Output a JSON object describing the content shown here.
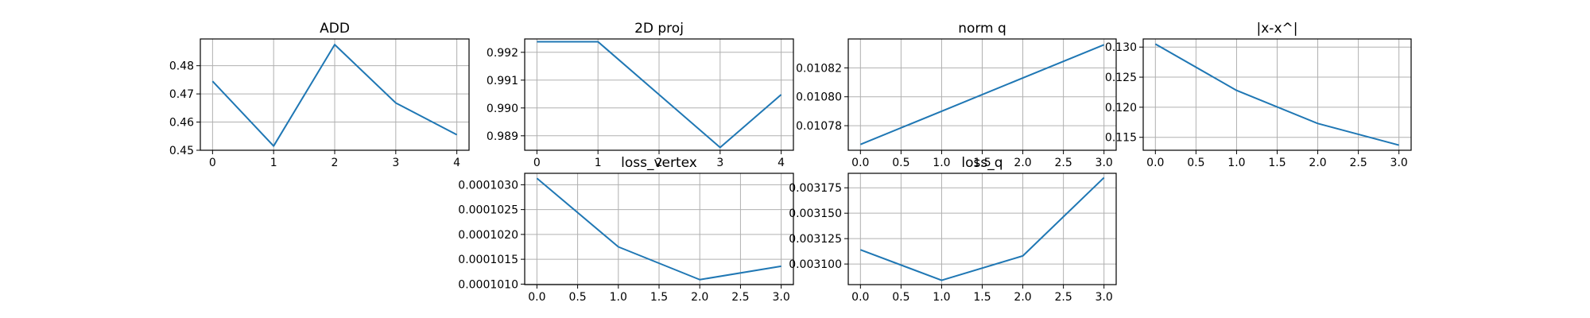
{
  "colors": {
    "series": "#1f77b4",
    "grid": "#b0b0b0",
    "axes": "#000000"
  },
  "chart_data": [
    {
      "type": "line",
      "title": "ADD",
      "xlabel": "",
      "ylabel": "",
      "x": [
        0,
        1,
        2,
        3,
        4
      ],
      "series": [
        {
          "values": [
            0.4745,
            0.4515,
            0.4875,
            0.4668,
            0.4555
          ]
        }
      ],
      "xticks": [
        0,
        1,
        2,
        3,
        4
      ],
      "xtick_labels": [
        "0",
        "1",
        "2",
        "3",
        "4"
      ],
      "xlim": [
        -0.2,
        4.2
      ],
      "yticks": [
        0.45,
        0.46,
        0.47,
        0.48
      ],
      "ytick_labels": [
        "0.45",
        "0.46",
        "0.47",
        "0.48"
      ],
      "ylim": [
        0.45,
        0.4895
      ],
      "grid": true
    },
    {
      "type": "line",
      "title": "2D proj",
      "xlabel": "",
      "ylabel": "",
      "x": [
        0,
        1,
        2,
        3,
        4
      ],
      "series": [
        {
          "values": [
            0.99238,
            0.99238,
            0.99048,
            0.98858,
            0.99048
          ]
        }
      ],
      "xticks": [
        0,
        1,
        2,
        3,
        4
      ],
      "xtick_labels": [
        "0",
        "1",
        "2",
        "3",
        "4"
      ],
      "xlim": [
        -0.2,
        4.2
      ],
      "yticks": [
        0.989,
        0.99,
        0.991,
        0.992
      ],
      "ytick_labels": [
        "0.989",
        "0.990",
        "0.991",
        "0.992"
      ],
      "ylim": [
        0.98848,
        0.99248
      ],
      "grid": true
    },
    {
      "type": "line",
      "title": "norm q",
      "xlabel": "",
      "ylabel": "",
      "x": [
        0,
        1,
        2,
        3
      ],
      "series": [
        {
          "values": [
            0.010767,
            0.01079,
            0.010813,
            0.010836
          ]
        }
      ],
      "xticks": [
        0,
        0.5,
        1,
        1.5,
        2,
        2.5,
        3
      ],
      "xtick_labels": [
        "0.0",
        "0.5",
        "1.0",
        "1.5",
        "2.0",
        "2.5",
        "3.0"
      ],
      "xlim": [
        -0.15,
        3.15
      ],
      "yticks": [
        0.01078,
        0.0108,
        0.01082
      ],
      "ytick_labels": [
        "0.01078",
        "0.01080",
        "0.01082"
      ],
      "ylim": [
        0.010763,
        0.01084
      ],
      "grid": true
    },
    {
      "type": "line",
      "title": "|x-x^|",
      "xlabel": "",
      "ylabel": "",
      "x": [
        0,
        1,
        2,
        3
      ],
      "series": [
        {
          "values": [
            0.1305,
            0.1228,
            0.1173,
            0.1137
          ]
        }
      ],
      "xticks": [
        0,
        0.5,
        1,
        1.5,
        2,
        2.5,
        3
      ],
      "xtick_labels": [
        "0.0",
        "0.5",
        "1.0",
        "1.5",
        "2.0",
        "2.5",
        "3.0"
      ],
      "xlim": [
        -0.15,
        3.15
      ],
      "yticks": [
        0.115,
        0.12,
        0.125,
        0.13
      ],
      "ytick_labels": [
        "0.115",
        "0.120",
        "0.125",
        "0.130"
      ],
      "ylim": [
        0.11285,
        0.13135
      ],
      "grid": true
    },
    {
      "type": "line",
      "title": "loss_vertex",
      "xlabel": "",
      "ylabel": "",
      "x": [
        0,
        1,
        2,
        3
      ],
      "series": [
        {
          "values": [
            0.00010313,
            0.00010175,
            0.00010109,
            0.00010136
          ]
        }
      ],
      "xticks": [
        0,
        0.5,
        1,
        1.5,
        2,
        2.5,
        3
      ],
      "xtick_labels": [
        "0.0",
        "0.5",
        "1.0",
        "1.5",
        "2.0",
        "2.5",
        "3.0"
      ],
      "xlim": [
        -0.15,
        3.15
      ],
      "yticks": [
        0.000101,
        0.0001015,
        0.000102,
        0.0001025,
        0.000103
      ],
      "ytick_labels": [
        "0.0001010",
        "0.0001015",
        "0.0001020",
        "0.0001025",
        "0.0001030"
      ],
      "ylim": [
        0.00010099,
        0.00010323
      ],
      "grid": true
    },
    {
      "type": "line",
      "title": "loss_q",
      "xlabel": "",
      "ylabel": "",
      "x": [
        0,
        1,
        2,
        3
      ],
      "series": [
        {
          "values": [
            0.003114,
            0.003084,
            0.003108,
            0.003185
          ]
        }
      ],
      "xticks": [
        0,
        0.5,
        1,
        1.5,
        2,
        2.5,
        3
      ],
      "xtick_labels": [
        "0.0",
        "0.5",
        "1.0",
        "1.5",
        "2.0",
        "2.5",
        "3.0"
      ],
      "xlim": [
        -0.15,
        3.15
      ],
      "yticks": [
        0.0031,
        0.003125,
        0.00315,
        0.003175
      ],
      "ytick_labels": [
        "0.003100",
        "0.003125",
        "0.003150",
        "0.003175"
      ],
      "ylim": [
        0.00307975,
        0.00318925
      ],
      "grid": true
    }
  ]
}
